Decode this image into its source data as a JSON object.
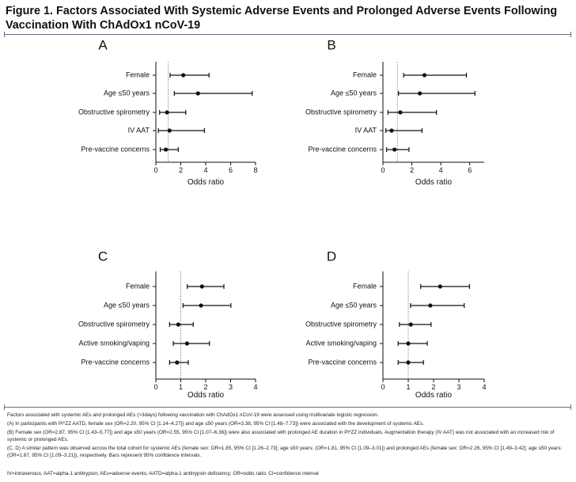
{
  "figure": {
    "title": "Figure 1. Factors Associated With Systemic Adverse Events and Prolonged Adverse Events Following Vaccination With ChAdOx1 nCoV-19"
  },
  "chart_data": [
    {
      "type": "forest",
      "panel": "A",
      "xlabel": "Odds ratio",
      "xlim": [
        0,
        8
      ],
      "xticks": [
        0,
        2,
        4,
        6,
        8
      ],
      "reference_line": 1,
      "categories": [
        "Female",
        "Age ≤50 years",
        "Obstructive spirometry",
        "IV AAT",
        "Pre-vaccine concerns"
      ],
      "estimates": [
        2.2,
        3.38,
        0.9,
        1.1,
        0.8
      ],
      "ci_low": [
        1.14,
        1.48,
        0.3,
        0.2,
        0.35
      ],
      "ci_high": [
        4.27,
        7.73,
        2.4,
        3.9,
        1.8
      ]
    },
    {
      "type": "forest",
      "panel": "B",
      "xlabel": "Odds ratio",
      "xlim": [
        0,
        7
      ],
      "xticks": [
        0,
        2,
        4,
        6
      ],
      "reference_line": 1,
      "categories": [
        "Female",
        "Age ≤50 years",
        "Obstructive spirometry",
        "IV AAT",
        "Pre-vaccine concerns"
      ],
      "estimates": [
        2.87,
        2.55,
        1.2,
        0.6,
        0.8
      ],
      "ci_low": [
        1.43,
        1.07,
        0.35,
        0.2,
        0.25
      ],
      "ci_high": [
        5.77,
        6.36,
        3.7,
        2.7,
        1.8
      ]
    },
    {
      "type": "forest",
      "panel": "C",
      "xlabel": "Odds ratio",
      "xlim": [
        0,
        4
      ],
      "xticks": [
        0,
        1,
        2,
        3,
        4
      ],
      "reference_line": 1,
      "categories": [
        "Female",
        "Age ≤50 years",
        "Obstructive spirometry",
        "Active smoking/vaping",
        "Pre-vaccine concerns"
      ],
      "estimates": [
        1.85,
        1.81,
        0.9,
        1.25,
        0.85
      ],
      "ci_low": [
        1.26,
        1.09,
        0.55,
        0.7,
        0.55
      ],
      "ci_high": [
        2.73,
        3.01,
        1.5,
        2.15,
        1.3
      ]
    },
    {
      "type": "forest",
      "panel": "D",
      "xlabel": "Odds ratio",
      "xlim": [
        0,
        4
      ],
      "xticks": [
        0,
        1,
        2,
        3,
        4
      ],
      "reference_line": 1,
      "categories": [
        "Female",
        "Age ≤50 years",
        "Obstructive spirometry",
        "Active smoking/vaping",
        "Pre-vaccine concerns"
      ],
      "estimates": [
        2.26,
        1.87,
        1.1,
        1.0,
        1.0
      ],
      "ci_low": [
        1.49,
        1.09,
        0.65,
        0.6,
        0.6
      ],
      "ci_high": [
        3.42,
        3.21,
        1.9,
        1.75,
        1.6
      ]
    }
  ],
  "caption": {
    "lines": [
      "Factors associated with systemic AEs and prolonged AEs (>3days) following vaccination with ChAdOx1 nCoV-19 were assessed using multivariate logistic regression.",
      "(A) In participants with Pi*ZZ AATD, female sex (OR=2.20, 95% CI [1.14–4.27]) and age ≤50 years (OR=3.38, 95% CI [1.48–7.73]) were associated with the development of systemic AEs.",
      "(B) Female sex (OR=2.87, 95% CI [1.43–5.77]) and age ≤50 years (OR=2.55, 95% CI [1.07–6.36]) were also associated with prolonged AE duration in Pi*ZZ individuals. Augmentation therapy (IV AAT) was not associated with an increased risk of systemic or prolonged AEs.",
      "(C, D) A similar pattern was observed across the total cohort for systemic AEs (female sex: OR=1.85, 95% CI [1.26–2.73]; age ≤50 years: (OR=1.81, 95% CI [1.09–3.01]) and prolonged AEs (female sex: OR=2.26, 95% CI [1.49–3.42]; age ≤50 years: (OR=1.87, 95% CI [1.09–3.21]), respectively. Bars represent 95% confidence intervals."
    ],
    "abbreviations": "IV=intravenous; AAT=alpha-1 antitrypsin; AEs=adverse events; AATD=alpha-1 antitrypsin deficiency; OR=odds ratio; CI=confidence interval"
  }
}
